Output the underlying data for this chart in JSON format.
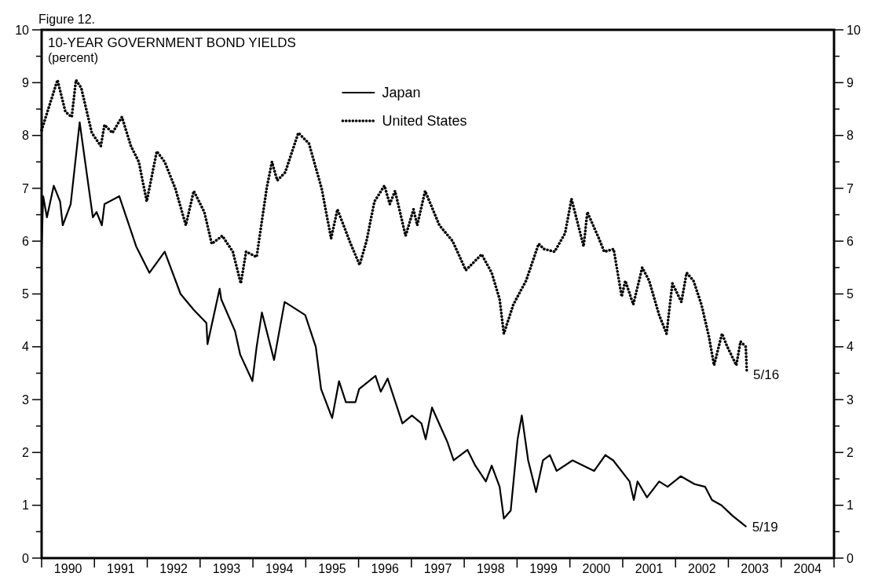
{
  "chart_data": {
    "type": "line",
    "title": "10-YEAR GOVERNMENT BOND YIELDS",
    "subtitle": "(percent)",
    "annotations": [
      "Figure 12.",
      {
        "text": "5/16",
        "x": 2003.35,
        "y": 3.48
      },
      {
        "text": "5/19",
        "x": 2003.33,
        "y": 0.59
      }
    ],
    "xlim": [
      1990,
      2005
    ],
    "xticks": [
      {
        "value": 1990,
        "label": null
      },
      {
        "value": 1990.5,
        "label": "1990"
      },
      {
        "value": 1991,
        "label": null
      },
      {
        "value": 1991.5,
        "label": "1991"
      },
      {
        "value": 1992,
        "label": null
      },
      {
        "value": 1992.5,
        "label": "1992"
      },
      {
        "value": 1993,
        "label": null
      },
      {
        "value": 1993.5,
        "label": "1993"
      },
      {
        "value": 1994,
        "label": null
      },
      {
        "value": 1994.5,
        "label": "1994"
      },
      {
        "value": 1995,
        "label": null
      },
      {
        "value": 1995.5,
        "label": "1995"
      },
      {
        "value": 1996,
        "label": null
      },
      {
        "value": 1996.5,
        "label": "1996"
      },
      {
        "value": 1997,
        "label": null
      },
      {
        "value": 1997.5,
        "label": "1997"
      },
      {
        "value": 1998,
        "label": null
      },
      {
        "value": 1998.5,
        "label": "1998"
      },
      {
        "value": 1999,
        "label": null
      },
      {
        "value": 1999.5,
        "label": "1999"
      },
      {
        "value": 2000,
        "label": null
      },
      {
        "value": 2000.5,
        "label": "2000"
      },
      {
        "value": 2001,
        "label": null
      },
      {
        "value": 2001.5,
        "label": "2001"
      },
      {
        "value": 2002,
        "label": null
      },
      {
        "value": 2002.5,
        "label": "2002"
      },
      {
        "value": 2003,
        "label": null
      },
      {
        "value": 2003.5,
        "label": "2003"
      },
      {
        "value": 2004,
        "label": null
      },
      {
        "value": 2004.5,
        "label": "2004"
      },
      {
        "value": 2005,
        "label": null
      }
    ],
    "ylim": [
      0,
      10
    ],
    "yticks": [
      0,
      {
        "value": 0.5,
        "label": null
      },
      1,
      {
        "value": 1.5,
        "label": null
      },
      2,
      {
        "value": 2.5,
        "label": null
      },
      3,
      {
        "value": 3.5,
        "label": null
      },
      4,
      {
        "value": 4.5,
        "label": null
      },
      5,
      {
        "value": 5.5,
        "label": null
      },
      6,
      {
        "value": 6.5,
        "label": null
      },
      7,
      {
        "value": 7.5,
        "label": null
      },
      8,
      {
        "value": 8.5,
        "label": null
      },
      9,
      {
        "value": 9.5,
        "label": null
      },
      10
    ],
    "y2lim": [
      0,
      10
    ],
    "y2ticks": [
      0,
      {
        "value": 0.5,
        "label": null
      },
      1,
      {
        "value": 1.5,
        "label": null
      },
      2,
      {
        "value": 2.5,
        "label": null
      },
      3,
      {
        "value": 3.5,
        "label": null
      },
      4,
      {
        "value": 4.5,
        "label": null
      },
      5,
      {
        "value": 5.5,
        "label": null
      },
      6,
      {
        "value": 6.5,
        "label": null
      },
      7,
      {
        "value": 7.5,
        "label": null
      },
      8,
      {
        "value": 8.5,
        "label": null
      },
      9,
      {
        "value": 9.5,
        "label": null
      },
      10
    ],
    "grid": false,
    "legend": "top",
    "marker": "none",
    "series": [
      {
        "name": "Japan",
        "color": "#000000",
        "line_style": "solid",
        "x": [
          1990.0,
          1990.03,
          1990.1,
          1990.23,
          1990.35,
          1990.4,
          1990.55,
          1990.72,
          1990.97,
          1991.04,
          1991.14,
          1991.19,
          1991.47,
          1991.79,
          1992.04,
          1992.33,
          1992.63,
          1992.88,
          1993.12,
          1993.14,
          1993.37,
          1993.4,
          1993.66,
          1993.76,
          1993.99,
          1994.07,
          1994.17,
          1994.4,
          1994.6,
          1994.99,
          1995.19,
          1995.29,
          1995.5,
          1995.63,
          1995.76,
          1995.94,
          1996.01,
          1996.32,
          1996.42,
          1996.55,
          1996.83,
          1997.01,
          1997.19,
          1997.27,
          1997.39,
          1997.68,
          1997.8,
          1998.06,
          1998.21,
          1998.41,
          1998.52,
          1998.67,
          1998.75,
          1998.88,
          1999.01,
          1999.09,
          1999.21,
          1999.36,
          1999.49,
          1999.62,
          1999.75,
          2000.05,
          2000.46,
          2000.67,
          2000.82,
          2001.13,
          2001.21,
          2001.28,
          2001.46,
          2001.69,
          2001.85,
          2002.1,
          2002.36,
          2002.56,
          2002.69,
          2002.87,
          2003.08,
          2003.33
        ],
        "values": [
          5.9,
          6.85,
          6.45,
          7.05,
          6.75,
          6.3,
          6.7,
          8.25,
          6.45,
          6.55,
          6.3,
          6.7,
          6.85,
          5.9,
          5.4,
          5.8,
          5.0,
          4.7,
          4.45,
          4.05,
          5.1,
          4.9,
          4.3,
          3.85,
          3.35,
          4.0,
          4.65,
          3.75,
          4.85,
          4.6,
          4.0,
          3.2,
          2.65,
          3.35,
          2.95,
          2.95,
          3.2,
          3.45,
          3.15,
          3.4,
          2.55,
          2.7,
          2.55,
          2.25,
          2.85,
          2.2,
          1.85,
          2.05,
          1.75,
          1.45,
          1.75,
          1.35,
          0.75,
          0.9,
          2.25,
          2.7,
          1.85,
          1.25,
          1.85,
          1.95,
          1.65,
          1.85,
          1.65,
          1.95,
          1.85,
          1.45,
          1.1,
          1.45,
          1.15,
          1.45,
          1.35,
          1.55,
          1.4,
          1.35,
          1.1,
          1.0,
          0.8,
          0.6
        ]
      },
      {
        "name": "United States",
        "color": "#000000",
        "line_style": "dotted",
        "x": [
          1990.0,
          1990.3,
          1990.45,
          1990.57,
          1990.65,
          1990.75,
          1990.95,
          1991.12,
          1991.19,
          1991.34,
          1991.52,
          1991.69,
          1991.84,
          1991.99,
          1992.18,
          1992.33,
          1992.53,
          1992.73,
          1992.88,
          1993.08,
          1993.22,
          1993.42,
          1993.62,
          1993.77,
          1993.87,
          1994.07,
          1994.26,
          1994.36,
          1994.46,
          1994.61,
          1994.86,
          1995.06,
          1995.3,
          1995.48,
          1995.6,
          1995.85,
          1996.02,
          1996.15,
          1996.3,
          1996.49,
          1996.59,
          1996.69,
          1996.89,
          1997.04,
          1997.11,
          1997.26,
          1997.53,
          1997.78,
          1998.03,
          1998.33,
          1998.52,
          1998.67,
          1998.75,
          1998.93,
          1999.17,
          1999.41,
          1999.51,
          1999.71,
          1999.91,
          2000.03,
          2000.26,
          2000.33,
          2000.55,
          2000.65,
          2000.83,
          2000.98,
          2001.05,
          2001.2,
          2001.37,
          2001.5,
          2001.69,
          2001.83,
          2001.94,
          2002.11,
          2002.21,
          2002.34,
          2002.49,
          2002.63,
          2002.73,
          2002.88,
          2002.98,
          2003.15,
          2003.23,
          2003.33,
          2003.35
        ],
        "values": [
          8.1,
          9.05,
          8.45,
          8.35,
          9.05,
          8.9,
          8.05,
          7.8,
          8.2,
          8.05,
          8.35,
          7.8,
          7.5,
          6.75,
          7.7,
          7.5,
          7.0,
          6.3,
          6.95,
          6.55,
          5.95,
          6.1,
          5.8,
          5.2,
          5.8,
          5.7,
          7.0,
          7.5,
          7.15,
          7.3,
          8.05,
          7.85,
          7.0,
          6.05,
          6.6,
          5.95,
          5.55,
          6.0,
          6.75,
          7.05,
          6.7,
          6.95,
          6.1,
          6.6,
          6.3,
          6.95,
          6.3,
          6.0,
          5.45,
          5.75,
          5.4,
          4.9,
          4.25,
          4.8,
          5.25,
          5.95,
          5.85,
          5.8,
          6.15,
          6.8,
          5.9,
          6.55,
          6.05,
          5.8,
          5.85,
          4.95,
          5.25,
          4.8,
          5.5,
          5.25,
          4.6,
          4.25,
          5.2,
          4.85,
          5.4,
          5.25,
          4.8,
          4.2,
          3.65,
          4.25,
          4.0,
          3.65,
          4.1,
          4.0,
          3.5
        ]
      }
    ]
  }
}
